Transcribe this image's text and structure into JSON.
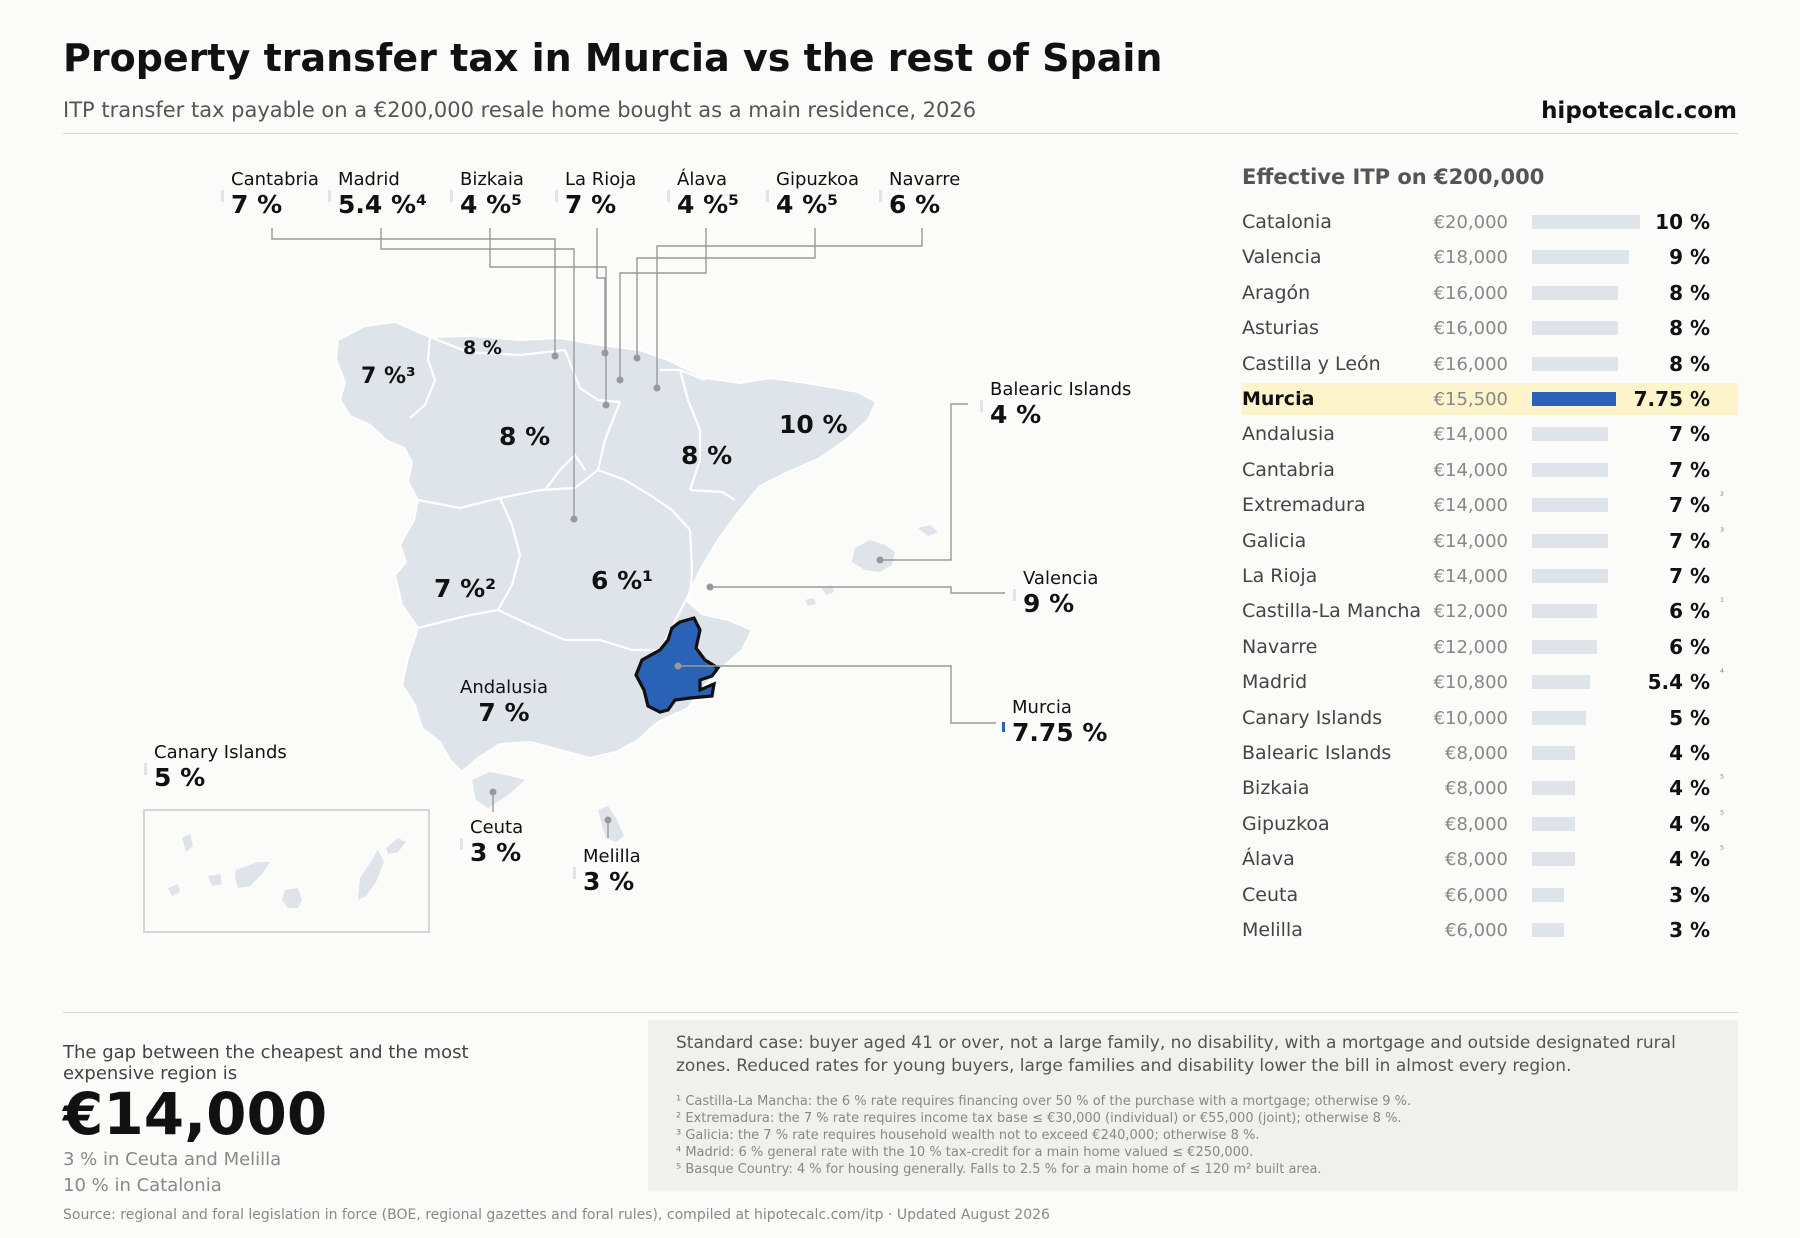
{
  "header": {
    "title": "Property transfer tax in Murcia vs the rest of Spain",
    "subtitle": "ITP transfer tax payable on a €200,000 resale home bought as a main residence, 2026",
    "brand": "hipotecalc.com"
  },
  "map": {
    "top_callouts": [
      {
        "name": "Cantabria",
        "rate": "7 %"
      },
      {
        "name": "Madrid",
        "rate": "5.4 %⁴"
      },
      {
        "name": "Bizkaia",
        "rate": "4 %⁵"
      },
      {
        "name": "La Rioja",
        "rate": "7 %"
      },
      {
        "name": "Álava",
        "rate": "4 %⁵"
      },
      {
        "name": "Gipuzkoa",
        "rate": "4 %⁵"
      },
      {
        "name": "Navarre",
        "rate": "6 %"
      }
    ],
    "side_callouts": [
      {
        "name": "Balearic Islands",
        "rate": "4 %"
      },
      {
        "name": "Valencia",
        "rate": "9 %"
      },
      {
        "name": "Murcia",
        "rate": "7.75 %"
      },
      {
        "name": "Canary Islands",
        "rate": "5 %"
      },
      {
        "name": "Ceuta",
        "rate": "3 %"
      },
      {
        "name": "Melilla",
        "rate": "3 %"
      },
      {
        "name": "Andalusia",
        "rate": "7 %"
      }
    ],
    "region_labels": {
      "galicia": "7 %³",
      "asturias": "8 %",
      "castilla_leon": "8 %",
      "aragon": "8 %",
      "catalonia": "10 %",
      "extremadura": "7 %²",
      "castilla_la_mancha": "6 %¹"
    },
    "colors": {
      "land": "#dfe3ea",
      "highlight": "#2a62b8",
      "leader": "#999999"
    }
  },
  "ranking": {
    "title": "Effective ITP on €200,000",
    "rows": [
      {
        "name": "Catalonia",
        "amount": "€20,000",
        "rate": "10 %",
        "rate_value": 10,
        "note": "",
        "highlight": false
      },
      {
        "name": "Valencia",
        "amount": "€18,000",
        "rate": "9 %",
        "rate_value": 9,
        "note": "",
        "highlight": false
      },
      {
        "name": "Aragón",
        "amount": "€16,000",
        "rate": "8 %",
        "rate_value": 8,
        "note": "",
        "highlight": false
      },
      {
        "name": "Asturias",
        "amount": "€16,000",
        "rate": "8 %",
        "rate_value": 8,
        "note": "",
        "highlight": false
      },
      {
        "name": "Castilla y León",
        "amount": "€16,000",
        "rate": "8 %",
        "rate_value": 8,
        "note": "",
        "highlight": false
      },
      {
        "name": "Murcia",
        "amount": "€15,500",
        "rate": "7.75 %",
        "rate_value": 7.75,
        "note": "",
        "highlight": true
      },
      {
        "name": "Andalusia",
        "amount": "€14,000",
        "rate": "7 %",
        "rate_value": 7,
        "note": "",
        "highlight": false
      },
      {
        "name": "Cantabria",
        "amount": "€14,000",
        "rate": "7 %",
        "rate_value": 7,
        "note": "",
        "highlight": false
      },
      {
        "name": "Extremadura",
        "amount": "€14,000",
        "rate": "7 %",
        "rate_value": 7,
        "note": "²",
        "highlight": false
      },
      {
        "name": "Galicia",
        "amount": "€14,000",
        "rate": "7 %",
        "rate_value": 7,
        "note": "³",
        "highlight": false
      },
      {
        "name": "La Rioja",
        "amount": "€14,000",
        "rate": "7 %",
        "rate_value": 7,
        "note": "",
        "highlight": false
      },
      {
        "name": "Castilla-La Mancha",
        "amount": "€12,000",
        "rate": "6 %",
        "rate_value": 6,
        "note": "¹",
        "highlight": false
      },
      {
        "name": "Navarre",
        "amount": "€12,000",
        "rate": "6 %",
        "rate_value": 6,
        "note": "",
        "highlight": false
      },
      {
        "name": "Madrid",
        "amount": "€10,800",
        "rate": "5.4 %",
        "rate_value": 5.4,
        "note": "⁴",
        "highlight": false
      },
      {
        "name": "Canary Islands",
        "amount": "€10,000",
        "rate": "5 %",
        "rate_value": 5,
        "note": "",
        "highlight": false
      },
      {
        "name": "Balearic Islands",
        "amount": "€8,000",
        "rate": "4 %",
        "rate_value": 4,
        "note": "",
        "highlight": false
      },
      {
        "name": "Bizkaia",
        "amount": "€8,000",
        "rate": "4 %",
        "rate_value": 4,
        "note": "⁵",
        "highlight": false
      },
      {
        "name": "Gipuzkoa",
        "amount": "€8,000",
        "rate": "4 %",
        "rate_value": 4,
        "note": "⁵",
        "highlight": false
      },
      {
        "name": "Álava",
        "amount": "€8,000",
        "rate": "4 %",
        "rate_value": 4,
        "note": "⁵",
        "highlight": false
      },
      {
        "name": "Ceuta",
        "amount": "€6,000",
        "rate": "3 %",
        "rate_value": 3,
        "note": "",
        "highlight": false
      },
      {
        "name": "Melilla",
        "amount": "€6,000",
        "rate": "3 %",
        "rate_value": 3,
        "note": "",
        "highlight": false
      }
    ]
  },
  "gap": {
    "label": "The gap between the cheapest and the most expensive region is",
    "amount": "€14,000",
    "low": "3 % in Ceuta and Melilla",
    "high": "10 % in Catalonia"
  },
  "notes": {
    "main": "Standard case: buyer aged 41 or over, not a large family, no disability, with a mortgage and outside designated rural zones. Reduced rates for young buyers, large families and disability lower the bill in almost every region.",
    "footnotes": [
      "¹ Castilla-La Mancha: the 6 % rate requires financing over 50 % of the purchase with a mortgage; otherwise 9 %.",
      "² Extremadura: the 7 % rate requires income tax base ≤ €30,000 (individual) or €55,000 (joint); otherwise 8 %.",
      "³ Galicia: the 7 % rate requires household wealth not to exceed €240,000; otherwise 8 %.",
      "⁴ Madrid: 6 % general rate with the 10 % tax-credit for a main home valued ≤ €250,000.",
      "⁵ Basque Country: 4 % for housing generally. Falls to 2.5 % for a main home of ≤ 120 m² built area."
    ]
  },
  "source": "Source: regional and foral legislation in force (BOE, regional gazettes and foral rules), compiled at hipotecalc.com/itp · Updated August 2026"
}
